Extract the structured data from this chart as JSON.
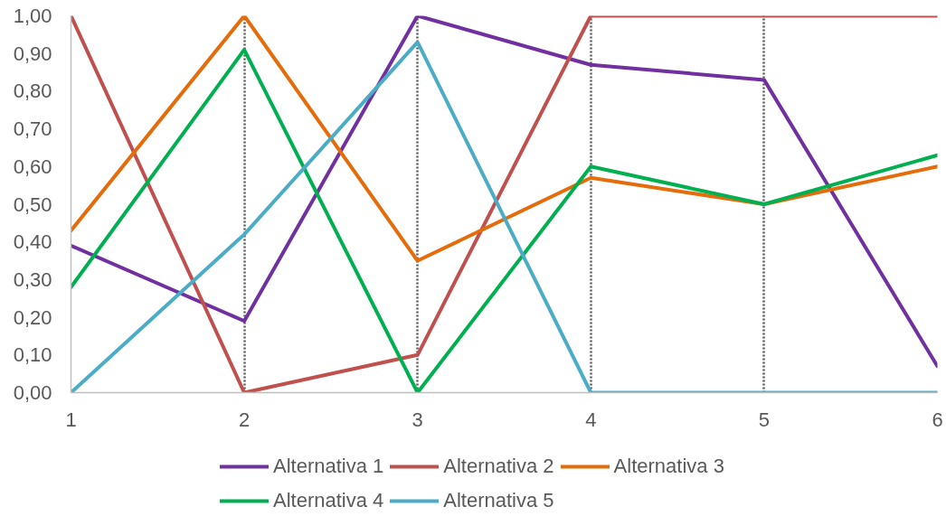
{
  "chart_data": {
    "type": "line",
    "x": [
      1,
      2,
      3,
      4,
      5,
      6
    ],
    "xlim": [
      1,
      6
    ],
    "xticks": [
      1,
      2,
      3,
      4,
      5,
      6
    ],
    "ylim": [
      0,
      1
    ],
    "yticks": [
      {
        "value": 0,
        "label": "0,00"
      },
      {
        "value": 0.1,
        "label": "0,10"
      },
      {
        "value": 0.2,
        "label": "0,20"
      },
      {
        "value": 0.3,
        "label": "0,30"
      },
      {
        "value": 0.4,
        "label": "0,40"
      },
      {
        "value": 0.5,
        "label": "0,50"
      },
      {
        "value": 0.6,
        "label": "0,60"
      },
      {
        "value": 0.7,
        "label": "0,70"
      },
      {
        "value": 0.8,
        "label": "0,80"
      },
      {
        "value": 0.9,
        "label": "0,90"
      },
      {
        "value": 1,
        "label": "1,00"
      }
    ],
    "series": [
      {
        "name": "Alternativa 1",
        "color": "#7030a0",
        "values": [
          0.39,
          0.19,
          1.0,
          0.87,
          0.83,
          0.07
        ]
      },
      {
        "name": "Alternativa 2",
        "color": "#c0504d",
        "values": [
          1.0,
          0.0,
          0.1,
          1.0,
          1.0,
          1.0
        ]
      },
      {
        "name": "Alternativa 3",
        "color": "#e46c0a",
        "values": [
          0.43,
          1.0,
          0.35,
          0.57,
          0.5,
          0.6
        ]
      },
      {
        "name": "Alternativa 4",
        "color": "#00b050",
        "values": [
          0.28,
          0.91,
          0.0,
          0.6,
          0.5,
          0.63
        ]
      },
      {
        "name": "Alternativa 5",
        "color": "#4bacc6",
        "values": [
          0.0,
          0.42,
          0.93,
          0.0,
          0.0,
          0.0
        ]
      }
    ],
    "grid": "x",
    "legend": "bottom"
  }
}
